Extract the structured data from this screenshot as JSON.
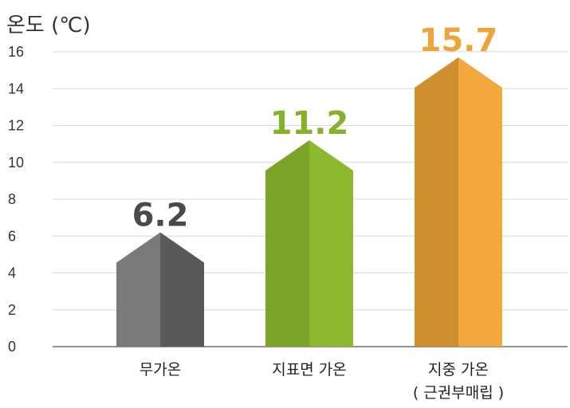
{
  "chart_data": {
    "type": "bar",
    "ylabel": "온도 (℃)",
    "xlabel": "",
    "ylim": [
      0,
      16
    ],
    "yticks": [
      0,
      2,
      4,
      6,
      8,
      10,
      12,
      14,
      16
    ],
    "grid": true,
    "categories": [
      {
        "label": "무가온",
        "sublabel": ""
      },
      {
        "label": "지표면 가온",
        "sublabel": ""
      },
      {
        "label": "지중 가온",
        "sublabel": "( 근권부매립 )"
      }
    ],
    "values": [
      6.2,
      11.2,
      15.7
    ],
    "value_labels": [
      "6.2",
      "11.2",
      "15.7"
    ],
    "colors": [
      {
        "dark": "#7a7a7a",
        "light": "#5a5858",
        "label": "#4a4a4a"
      },
      {
        "dark": "#7ba428",
        "light": "#8db82e",
        "label": "#86b22a"
      },
      {
        "dark": "#d08f2f",
        "light": "#f2a83d",
        "label": "#eda43a"
      }
    ]
  }
}
